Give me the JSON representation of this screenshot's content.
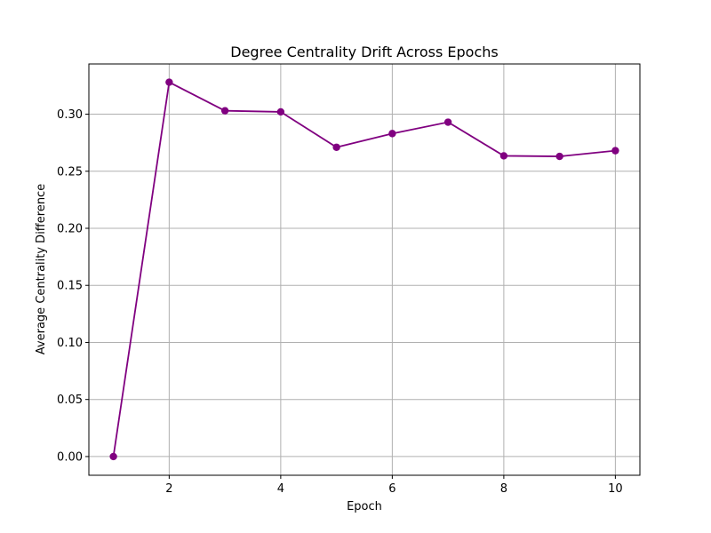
{
  "chart_data": {
    "type": "line",
    "title": "Degree Centrality Drift Across Epochs",
    "xlabel": "Epoch",
    "ylabel": "Average Centrality Difference",
    "x": [
      1,
      2,
      3,
      4,
      5,
      6,
      7,
      8,
      9,
      10
    ],
    "series": [
      {
        "values": [
          0.0,
          0.328,
          0.303,
          0.302,
          0.271,
          0.283,
          0.293,
          0.2635,
          0.263,
          0.268
        ],
        "color": "#800080",
        "marker": "circle"
      }
    ],
    "xlim": [
      0.56,
      10.44
    ],
    "ylim": [
      -0.0164,
      0.344
    ],
    "xticks": [
      2,
      4,
      6,
      8,
      10
    ],
    "xtick_labels": [
      "2",
      "4",
      "6",
      "8",
      "10"
    ],
    "yticks": [
      0.0,
      0.05,
      0.1,
      0.15,
      0.2,
      0.25,
      0.3
    ],
    "ytick_labels": [
      "0.00",
      "0.05",
      "0.10",
      "0.15",
      "0.20",
      "0.25",
      "0.30"
    ],
    "grid": true,
    "grid_color": "#b0b0b0"
  }
}
